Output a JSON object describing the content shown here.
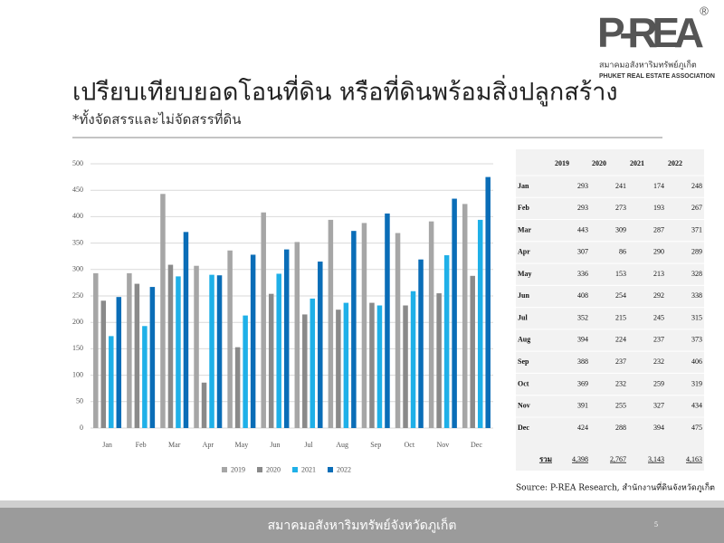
{
  "header": {
    "logo": "P-REA",
    "logo_mark": "®",
    "logo_thai": "สมาคมอสังหาริมทรัพย์ภูเก็ต",
    "logo_en": "PHUKET REAL ESTATE ASSOCIATION",
    "title": "เปรียบเทียบยอดโอนที่ดิน หรือที่ดินพร้อมสิ่งปลูกสร้าง",
    "subtitle": "*ทั้งจัดสรรและไม่จัดสรรที่ดิน"
  },
  "chart_data": {
    "type": "bar",
    "categories": [
      "Jan",
      "Feb",
      "Mar",
      "Apr",
      "May",
      "Jun",
      "Jul",
      "Aug",
      "Sep",
      "Oct",
      "Nov",
      "Dec"
    ],
    "series": [
      {
        "name": "2019",
        "color": "#a6a6a6",
        "values": [
          293,
          293,
          443,
          307,
          336,
          408,
          352,
          394,
          388,
          369,
          391,
          424
        ]
      },
      {
        "name": "2020",
        "color": "#8a8a8a",
        "values": [
          241,
          273,
          309,
          86,
          153,
          254,
          215,
          224,
          237,
          232,
          255,
          288
        ]
      },
      {
        "name": "2021",
        "color": "#1fb0e8",
        "values": [
          174,
          193,
          287,
          290,
          213,
          292,
          245,
          237,
          232,
          259,
          327,
          394
        ]
      },
      {
        "name": "2022",
        "color": "#0a6db7",
        "values": [
          248,
          267,
          371,
          289,
          328,
          338,
          315,
          373,
          406,
          319,
          434,
          475
        ]
      }
    ],
    "ylim": [
      0,
      500
    ],
    "yticks": [
      0,
      50,
      100,
      150,
      200,
      250,
      300,
      350,
      400,
      450,
      500
    ],
    "grid": true,
    "legend": "bottom"
  },
  "table": {
    "total_label": "รวม",
    "totals": [
      {
        "value": 4398,
        "label": "4,398"
      },
      {
        "value": 2767,
        "label": "2,767"
      },
      {
        "value": 3143,
        "label": "3,143"
      },
      {
        "value": 4163,
        "label": "4,163"
      }
    ]
  },
  "source": "Source: P-REA Research, สำนักงานที่ดินจังหวัดภูเก็ต",
  "footer": {
    "text": "สมาคมอสังหาริมทรัพย์จังหวัดภูเก็ต",
    "page": "5"
  }
}
